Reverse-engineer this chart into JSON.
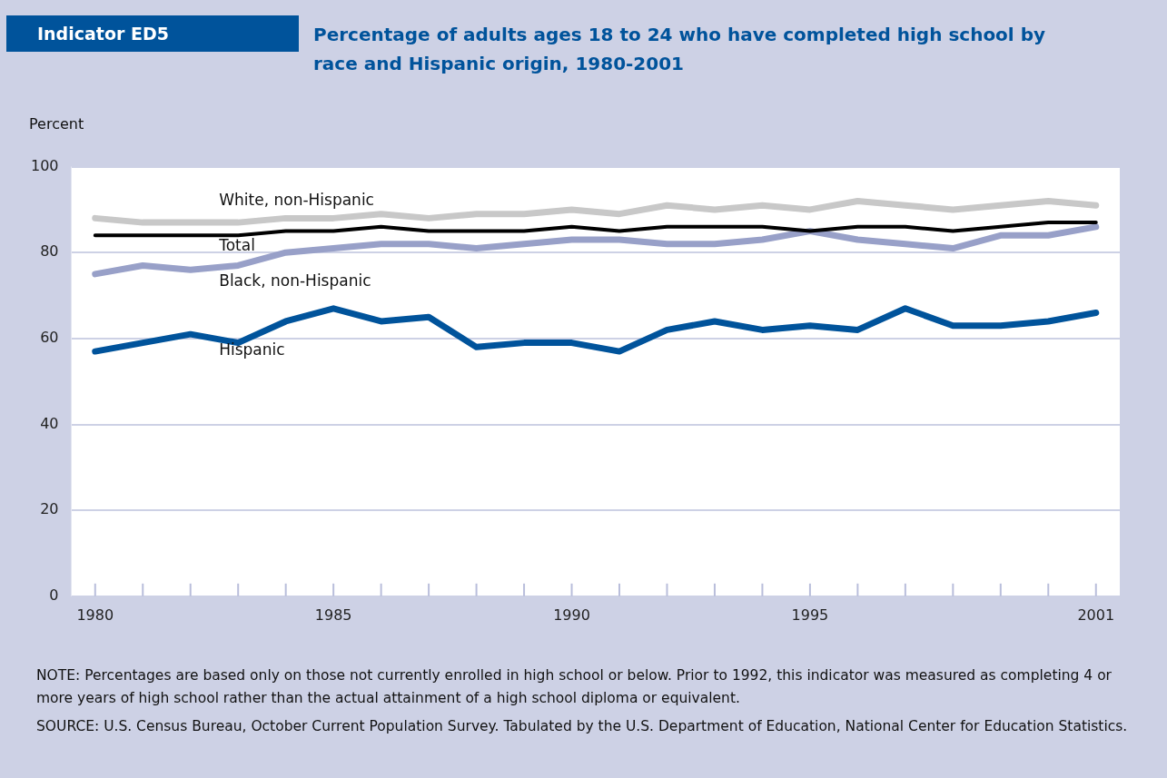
{
  "chart_data": {
    "type": "line",
    "title": "Percentage of adults ages 18 to 24 who have completed high school by race and Hispanic origin, 1980-2001",
    "ylabel": "Percent",
    "annotations": [
      "Indicator ED5",
      "NOTE: Percentages are based only on those not currently enrolled in high school or below. Prior to 1992, this indicator was measured as completing 4 or more years of high school rather than the actual attainment of a high school diploma or equivalent.",
      "SOURCE: U.S. Census Bureau, October Current Population Survey. Tabulated by the U.S. Department of Education, National Center for Education Statistics."
    ],
    "x": [
      1980,
      1981,
      1982,
      1983,
      1984,
      1985,
      1986,
      1987,
      1988,
      1989,
      1990,
      1991,
      1992,
      1993,
      1994,
      1995,
      1996,
      1997,
      1998,
      1999,
      2000,
      2001
    ],
    "series": [
      {
        "name": "White, non-Hispanic",
        "color": "#c8c8c8",
        "values": [
          88,
          87,
          87,
          87,
          88,
          88,
          89,
          88,
          89,
          89,
          90,
          89,
          91,
          90,
          91,
          90,
          92,
          91,
          90,
          91,
          92,
          91
        ]
      },
      {
        "name": "Total",
        "color": "#000000",
        "values": [
          84,
          84,
          84,
          84,
          85,
          85,
          86,
          85,
          85,
          85,
          86,
          85,
          86,
          86,
          86,
          85,
          86,
          86,
          85,
          86,
          87,
          87
        ]
      },
      {
        "name": "Black, non-Hispanic",
        "color": "#98a0c8",
        "values": [
          75,
          77,
          76,
          77,
          80,
          81,
          82,
          82,
          81,
          82,
          83,
          83,
          82,
          82,
          83,
          85,
          83,
          82,
          81,
          84,
          84,
          86
        ]
      },
      {
        "name": "Hispanic",
        "color": "#00539b",
        "values": [
          57,
          59,
          61,
          59,
          64,
          67,
          64,
          65,
          58,
          59,
          59,
          57,
          62,
          64,
          62,
          63,
          62,
          67,
          63,
          63,
          64,
          66
        ]
      }
    ],
    "xlim": [
      1979.5,
      2001.5
    ],
    "xticks": [
      1980,
      {
        "value": 1981,
        "label": null
      },
      {
        "value": 1982,
        "label": null
      },
      {
        "value": 1983,
        "label": null
      },
      {
        "value": 1984,
        "label": null
      },
      1985,
      {
        "value": 1986,
        "label": null
      },
      {
        "value": 1987,
        "label": null
      },
      {
        "value": 1988,
        "label": null
      },
      {
        "value": 1989,
        "label": null
      },
      1990,
      {
        "value": 1991,
        "label": null
      },
      {
        "value": 1992,
        "label": null
      },
      {
        "value": 1993,
        "label": null
      },
      {
        "value": 1994,
        "label": null
      },
      1995,
      {
        "value": 1996,
        "label": null
      },
      {
        "value": 1997,
        "label": null
      },
      {
        "value": 1998,
        "label": null
      },
      {
        "value": 1999,
        "label": null
      },
      {
        "value": 2000,
        "label": null
      },
      2001
    ],
    "ylim": [
      0,
      100
    ],
    "yticks": [
      0,
      20,
      40,
      60,
      80,
      100
    ],
    "grid": "y",
    "legend": false,
    "marker": "none",
    "line_style": "solid"
  }
}
